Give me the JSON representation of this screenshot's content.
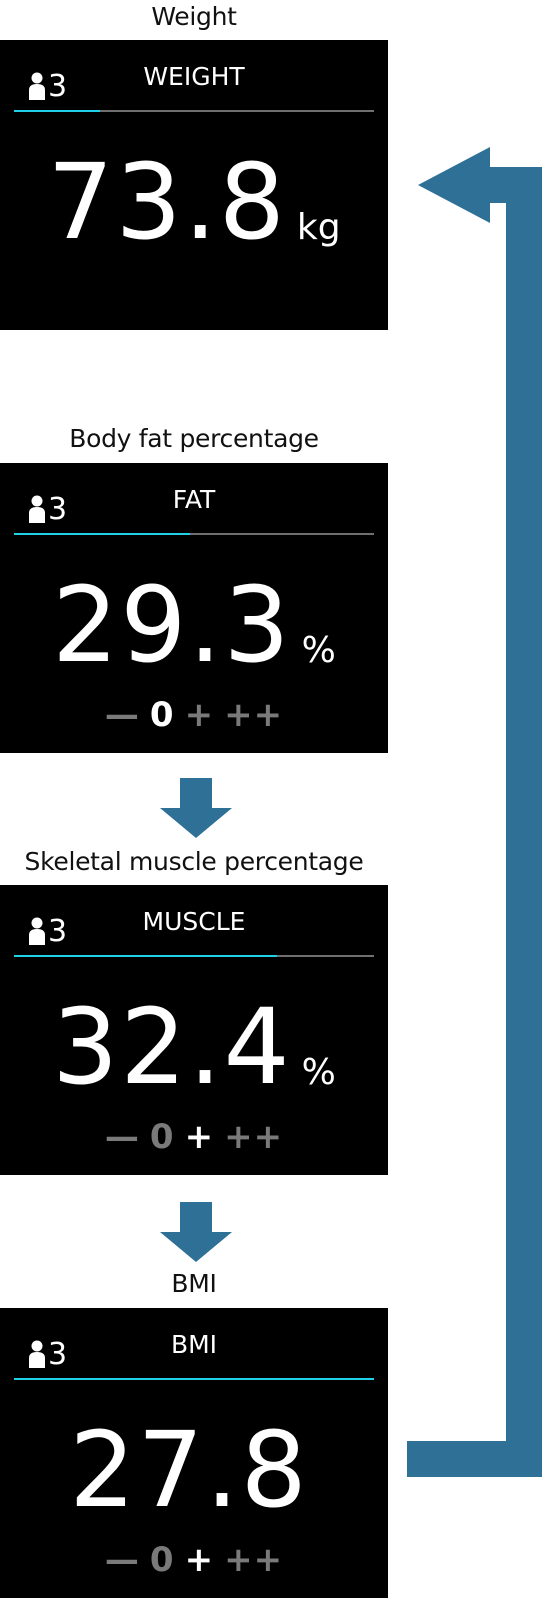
{
  "colors": {
    "screen_bg": "#000000",
    "accent": "#1fd0e6",
    "track": "#6f6f6f",
    "inactive_rating": "#7a7a7a",
    "flow_arrow": "#2e7096"
  },
  "user_icon": "person-icon",
  "screens": [
    {
      "caption": "Weight",
      "user_number": "3",
      "label": "WEIGHT",
      "progress": 0.24,
      "value": "73.8",
      "unit": "kg",
      "rating": null
    },
    {
      "caption": "Body fat percentage",
      "user_number": "3",
      "label": "FAT",
      "progress": 0.49,
      "value": "29.3",
      "unit": "%",
      "rating": {
        "options": [
          "—",
          "0",
          "+",
          "++"
        ],
        "active_index": 1
      }
    },
    {
      "caption": "Skeletal muscle percentage",
      "user_number": "3",
      "label": "MUSCLE",
      "progress": 0.73,
      "value": "32.4",
      "unit": "%",
      "rating": {
        "options": [
          "—",
          "0",
          "+",
          "++"
        ],
        "active_index": 2
      }
    },
    {
      "caption": "BMI",
      "user_number": "3",
      "label": "BMI",
      "progress": 1.0,
      "value": "27.8",
      "unit": "",
      "rating": {
        "options": [
          "—",
          "0",
          "+",
          "++"
        ],
        "active_index": 2
      }
    }
  ]
}
